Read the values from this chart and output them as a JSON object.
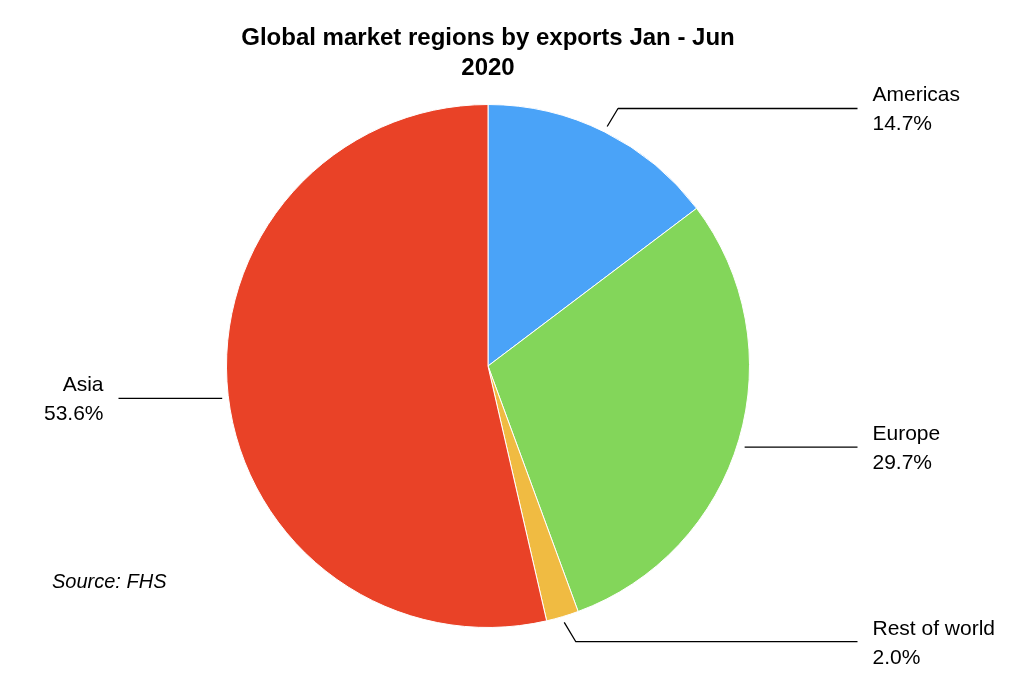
{
  "chart_data": {
    "type": "pie",
    "title": "Global market regions by exports Jan - Jun 2020",
    "categories": [
      "Americas",
      "Europe",
      "Rest of world",
      "Asia"
    ],
    "values": [
      14.7,
      29.7,
      2.0,
      53.6
    ],
    "value_labels": [
      "14.7%",
      "29.7%",
      "2.0%",
      "53.6%"
    ],
    "colors": [
      "#4aa3f8",
      "#83d65a",
      "#f0bb42",
      "#e94227"
    ],
    "annotations": [
      "Source: FHS"
    ]
  }
}
